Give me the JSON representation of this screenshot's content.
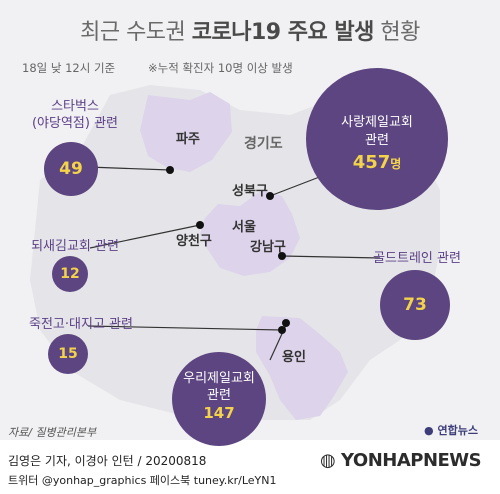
{
  "header": {
    "title_prefix": "최근 수도권 ",
    "title_bold": "코로나19 주요 발생",
    "title_suffix": " 현황",
    "date": "18일 낮 12시 기준",
    "note": "※누적 확진자 10명 이상 발생"
  },
  "places": {
    "province": "경기도",
    "paju": "파주",
    "seongbuk": "성북구",
    "seoul": "서울",
    "yangcheon": "양천구",
    "gangnam": "강남구",
    "yongin": "용인"
  },
  "clusters": [
    {
      "label_line1": "스타벅스",
      "label_line2": "(야당역점) 관련",
      "count": "49"
    },
    {
      "label_line1": "사랑제일교회",
      "label_line2": "관련",
      "count": "457",
      "unit": "명"
    },
    {
      "label_line1": "되새김교회 관련",
      "count": "12"
    },
    {
      "label_line1": "골드트레인 관련",
      "count": "73"
    },
    {
      "label_line1": "죽전고·대지고 관련",
      "count": "15"
    },
    {
      "label_line1": "우리제일교회",
      "label_line2": "관련",
      "count": "147"
    }
  ],
  "footer": {
    "source": "자료/ 질병관리본부",
    "logo": "연합뉴스",
    "credit_line1": "김영은 기자, 이경아 인턴 / 20200818",
    "credit_line2": "트위터 @yonhap_graphics  페이스북 tuney.kr/LeYN1",
    "brand": "YONHAPNEWS"
  },
  "colors": {
    "region_fill": "#ddd3ea",
    "circle_fill": "#5c4580",
    "count_text": "#f3d34a",
    "label_text": "#5b3f86"
  }
}
